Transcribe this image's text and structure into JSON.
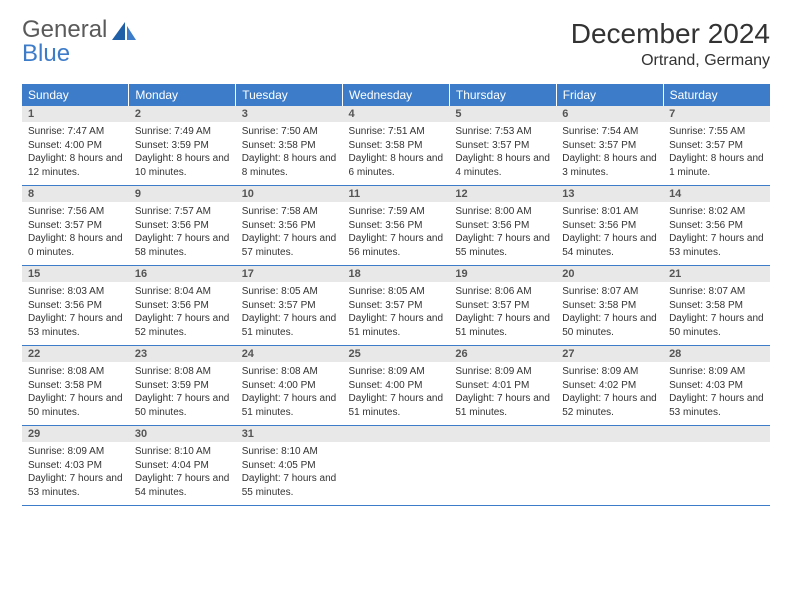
{
  "logo": {
    "word1": "General",
    "word2": "Blue"
  },
  "title": "December 2024",
  "location": "Ortrand, Germany",
  "colors": {
    "header_bg": "#3d7cc9",
    "header_text": "#ffffff",
    "daynum_bg": "#e8e8e8",
    "daynum_text": "#555555",
    "body_text": "#333333",
    "row_border": "#3d7cc9",
    "page_bg": "#ffffff",
    "logo_gray": "#5a5a5a",
    "logo_blue": "#3d7cc9"
  },
  "typography": {
    "title_fontsize": 28,
    "location_fontsize": 16,
    "weekday_fontsize": 12,
    "daynum_fontsize": 11,
    "body_fontsize": 10,
    "logo_fontsize": 24
  },
  "weekdays": [
    "Sunday",
    "Monday",
    "Tuesday",
    "Wednesday",
    "Thursday",
    "Friday",
    "Saturday"
  ],
  "weeks": [
    [
      {
        "n": "1",
        "sunrise": "Sunrise: 7:47 AM",
        "sunset": "Sunset: 4:00 PM",
        "daylight": "Daylight: 8 hours and 12 minutes."
      },
      {
        "n": "2",
        "sunrise": "Sunrise: 7:49 AM",
        "sunset": "Sunset: 3:59 PM",
        "daylight": "Daylight: 8 hours and 10 minutes."
      },
      {
        "n": "3",
        "sunrise": "Sunrise: 7:50 AM",
        "sunset": "Sunset: 3:58 PM",
        "daylight": "Daylight: 8 hours and 8 minutes."
      },
      {
        "n": "4",
        "sunrise": "Sunrise: 7:51 AM",
        "sunset": "Sunset: 3:58 PM",
        "daylight": "Daylight: 8 hours and 6 minutes."
      },
      {
        "n": "5",
        "sunrise": "Sunrise: 7:53 AM",
        "sunset": "Sunset: 3:57 PM",
        "daylight": "Daylight: 8 hours and 4 minutes."
      },
      {
        "n": "6",
        "sunrise": "Sunrise: 7:54 AM",
        "sunset": "Sunset: 3:57 PM",
        "daylight": "Daylight: 8 hours and 3 minutes."
      },
      {
        "n": "7",
        "sunrise": "Sunrise: 7:55 AM",
        "sunset": "Sunset: 3:57 PM",
        "daylight": "Daylight: 8 hours and 1 minute."
      }
    ],
    [
      {
        "n": "8",
        "sunrise": "Sunrise: 7:56 AM",
        "sunset": "Sunset: 3:57 PM",
        "daylight": "Daylight: 8 hours and 0 minutes."
      },
      {
        "n": "9",
        "sunrise": "Sunrise: 7:57 AM",
        "sunset": "Sunset: 3:56 PM",
        "daylight": "Daylight: 7 hours and 58 minutes."
      },
      {
        "n": "10",
        "sunrise": "Sunrise: 7:58 AM",
        "sunset": "Sunset: 3:56 PM",
        "daylight": "Daylight: 7 hours and 57 minutes."
      },
      {
        "n": "11",
        "sunrise": "Sunrise: 7:59 AM",
        "sunset": "Sunset: 3:56 PM",
        "daylight": "Daylight: 7 hours and 56 minutes."
      },
      {
        "n": "12",
        "sunrise": "Sunrise: 8:00 AM",
        "sunset": "Sunset: 3:56 PM",
        "daylight": "Daylight: 7 hours and 55 minutes."
      },
      {
        "n": "13",
        "sunrise": "Sunrise: 8:01 AM",
        "sunset": "Sunset: 3:56 PM",
        "daylight": "Daylight: 7 hours and 54 minutes."
      },
      {
        "n": "14",
        "sunrise": "Sunrise: 8:02 AM",
        "sunset": "Sunset: 3:56 PM",
        "daylight": "Daylight: 7 hours and 53 minutes."
      }
    ],
    [
      {
        "n": "15",
        "sunrise": "Sunrise: 8:03 AM",
        "sunset": "Sunset: 3:56 PM",
        "daylight": "Daylight: 7 hours and 53 minutes."
      },
      {
        "n": "16",
        "sunrise": "Sunrise: 8:04 AM",
        "sunset": "Sunset: 3:56 PM",
        "daylight": "Daylight: 7 hours and 52 minutes."
      },
      {
        "n": "17",
        "sunrise": "Sunrise: 8:05 AM",
        "sunset": "Sunset: 3:57 PM",
        "daylight": "Daylight: 7 hours and 51 minutes."
      },
      {
        "n": "18",
        "sunrise": "Sunrise: 8:05 AM",
        "sunset": "Sunset: 3:57 PM",
        "daylight": "Daylight: 7 hours and 51 minutes."
      },
      {
        "n": "19",
        "sunrise": "Sunrise: 8:06 AM",
        "sunset": "Sunset: 3:57 PM",
        "daylight": "Daylight: 7 hours and 51 minutes."
      },
      {
        "n": "20",
        "sunrise": "Sunrise: 8:07 AM",
        "sunset": "Sunset: 3:58 PM",
        "daylight": "Daylight: 7 hours and 50 minutes."
      },
      {
        "n": "21",
        "sunrise": "Sunrise: 8:07 AM",
        "sunset": "Sunset: 3:58 PM",
        "daylight": "Daylight: 7 hours and 50 minutes."
      }
    ],
    [
      {
        "n": "22",
        "sunrise": "Sunrise: 8:08 AM",
        "sunset": "Sunset: 3:58 PM",
        "daylight": "Daylight: 7 hours and 50 minutes."
      },
      {
        "n": "23",
        "sunrise": "Sunrise: 8:08 AM",
        "sunset": "Sunset: 3:59 PM",
        "daylight": "Daylight: 7 hours and 50 minutes."
      },
      {
        "n": "24",
        "sunrise": "Sunrise: 8:08 AM",
        "sunset": "Sunset: 4:00 PM",
        "daylight": "Daylight: 7 hours and 51 minutes."
      },
      {
        "n": "25",
        "sunrise": "Sunrise: 8:09 AM",
        "sunset": "Sunset: 4:00 PM",
        "daylight": "Daylight: 7 hours and 51 minutes."
      },
      {
        "n": "26",
        "sunrise": "Sunrise: 8:09 AM",
        "sunset": "Sunset: 4:01 PM",
        "daylight": "Daylight: 7 hours and 51 minutes."
      },
      {
        "n": "27",
        "sunrise": "Sunrise: 8:09 AM",
        "sunset": "Sunset: 4:02 PM",
        "daylight": "Daylight: 7 hours and 52 minutes."
      },
      {
        "n": "28",
        "sunrise": "Sunrise: 8:09 AM",
        "sunset": "Sunset: 4:03 PM",
        "daylight": "Daylight: 7 hours and 53 minutes."
      }
    ],
    [
      {
        "n": "29",
        "sunrise": "Sunrise: 8:09 AM",
        "sunset": "Sunset: 4:03 PM",
        "daylight": "Daylight: 7 hours and 53 minutes."
      },
      {
        "n": "30",
        "sunrise": "Sunrise: 8:10 AM",
        "sunset": "Sunset: 4:04 PM",
        "daylight": "Daylight: 7 hours and 54 minutes."
      },
      {
        "n": "31",
        "sunrise": "Sunrise: 8:10 AM",
        "sunset": "Sunset: 4:05 PM",
        "daylight": "Daylight: 7 hours and 55 minutes."
      },
      null,
      null,
      null,
      null
    ]
  ]
}
